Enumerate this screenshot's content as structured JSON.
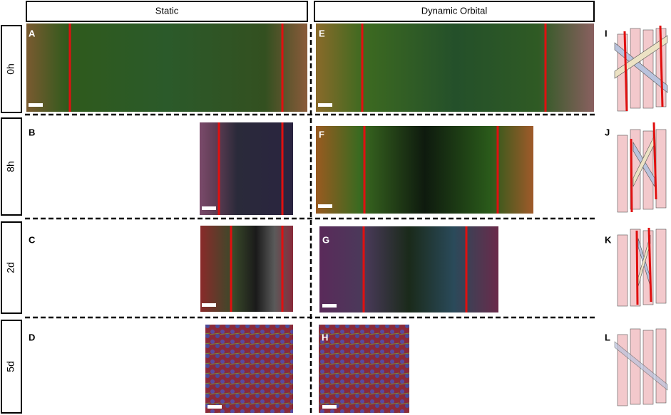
{
  "columns": [
    "Static",
    "Dynamic Orbital"
  ],
  "rows": [
    "0h",
    "8h",
    "2d",
    "5d"
  ],
  "panels": [
    "A",
    "B",
    "C",
    "D",
    "E",
    "F",
    "G",
    "H",
    "I",
    "J",
    "K",
    "L"
  ]
}
